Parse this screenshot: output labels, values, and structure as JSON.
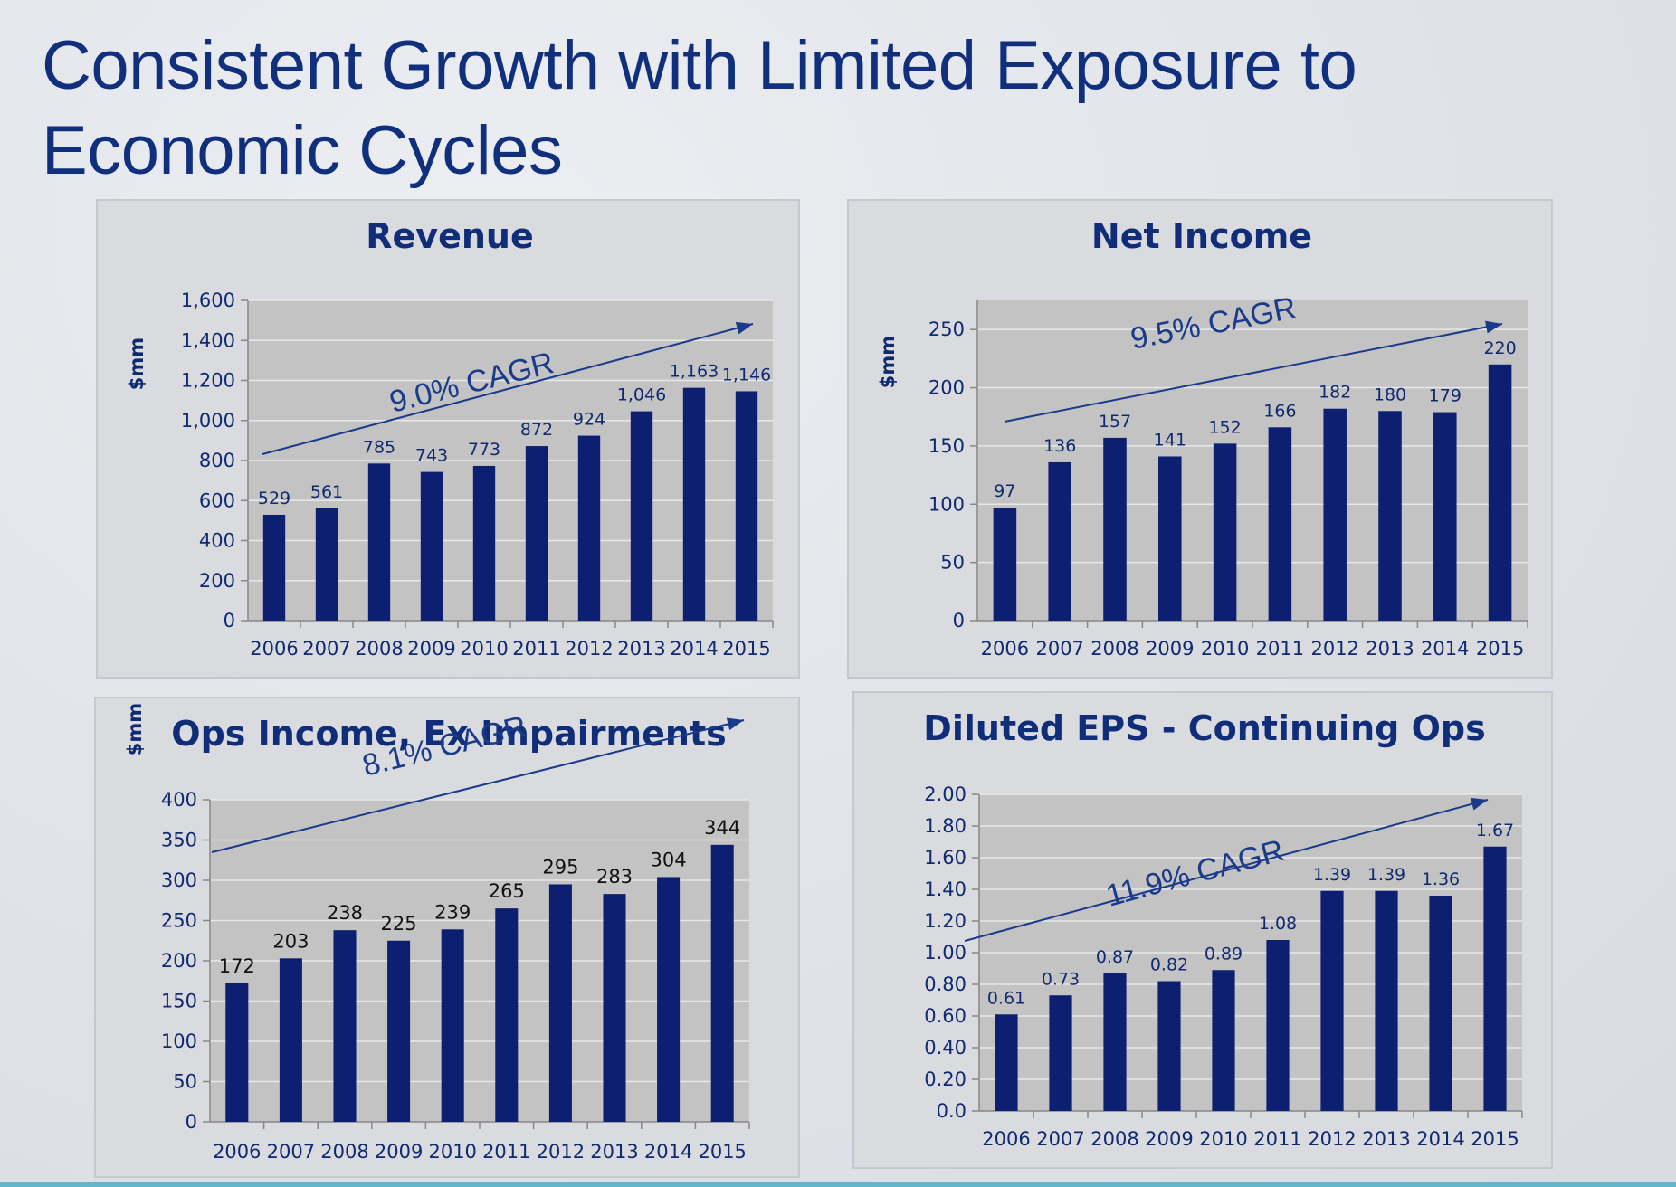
{
  "title": "Consistent Growth with Limited Exposure to Economic Cycles",
  "colors": {
    "bar": "#0d1f70",
    "plot_bg": "#c3c3c3",
    "title": "#10307e",
    "arrow": "#1a3a8c"
  },
  "charts": [
    {
      "id": "revenue",
      "title": "Revenue",
      "ylabel": "$mm",
      "cagr": "9.0% CAGR",
      "y_ticks": [
        "0",
        "200",
        "400",
        "600",
        "800",
        "1,000",
        "1,200",
        "1,400",
        "1,600"
      ],
      "data_labels": [
        "529",
        "561",
        "785",
        "743",
        "773",
        "872",
        "924",
        "1,046",
        "1,163",
        "1,146"
      ],
      "x_ticks": [
        "2006",
        "2007",
        "2008",
        "2009",
        "2010",
        "2011",
        "2012",
        "2013",
        "2014",
        "2015"
      ]
    },
    {
      "id": "net-income",
      "title": "Net Income",
      "ylabel": "$mm",
      "cagr": "9.5% CAGR",
      "y_ticks": [
        "0",
        "50",
        "100",
        "150",
        "200",
        "250"
      ],
      "data_labels": [
        "97",
        "136",
        "157",
        "141",
        "152",
        "166",
        "182",
        "180",
        "179",
        "220"
      ],
      "x_ticks": [
        "2006",
        "2007",
        "2008",
        "2009",
        "2010",
        "2011",
        "2012",
        "2013",
        "2014",
        "2015"
      ]
    },
    {
      "id": "ops-income",
      "title": "Ops Income, Ex Impairments",
      "ylabel": "$mm",
      "cagr": "8.1% CAGR",
      "y_ticks": [
        "0",
        "50",
        "100",
        "150",
        "200",
        "250",
        "300",
        "350",
        "400"
      ],
      "data_labels": [
        "172",
        "203",
        "238",
        "225",
        "239",
        "265",
        "295",
        "283",
        "304",
        "344"
      ],
      "x_ticks": [
        "2006",
        "2007",
        "2008",
        "2009",
        "2010",
        "2011",
        "2012",
        "2013",
        "2014",
        "2015"
      ]
    },
    {
      "id": "diluted-eps",
      "title": "Diluted EPS - Continuing Ops",
      "ylabel": "",
      "cagr": "11.9% CAGR",
      "y_ticks": [
        "0.0",
        "0.20",
        "0.40",
        "0.60",
        "0.80",
        "1.00",
        "1.20",
        "1.40",
        "1.60",
        "1.80",
        "2.00"
      ],
      "data_labels": [
        "0.61",
        "0.73",
        "0.87",
        "0.82",
        "0.89",
        "1.08",
        "1.39",
        "1.39",
        "1.36",
        "1.67"
      ],
      "x_ticks": [
        "2006",
        "2007",
        "2008",
        "2009",
        "2010",
        "2011",
        "2012",
        "2013",
        "2014",
        "2015"
      ]
    }
  ],
  "chart_data": [
    {
      "type": "bar",
      "title": "Revenue",
      "ylabel": "$mm",
      "categories": [
        "2006",
        "2007",
        "2008",
        "2009",
        "2010",
        "2011",
        "2012",
        "2013",
        "2014",
        "2015"
      ],
      "values": [
        529,
        561,
        785,
        743,
        773,
        872,
        924,
        1046,
        1163,
        1146
      ],
      "ylim": [
        0,
        1600
      ],
      "annotation": "9.0% CAGR",
      "grid": true
    },
    {
      "type": "bar",
      "title": "Net Income",
      "ylabel": "$mm",
      "categories": [
        "2006",
        "2007",
        "2008",
        "2009",
        "2010",
        "2011",
        "2012",
        "2013",
        "2014",
        "2015"
      ],
      "values": [
        97,
        136,
        157,
        141,
        152,
        166,
        182,
        180,
        179,
        220
      ],
      "ylim": [
        0,
        275
      ],
      "annotation": "9.5% CAGR",
      "grid": true
    },
    {
      "type": "bar",
      "title": "Ops Income, Ex Impairments",
      "ylabel": "$mm",
      "categories": [
        "2006",
        "2007",
        "2008",
        "2009",
        "2010",
        "2011",
        "2012",
        "2013",
        "2014",
        "2015"
      ],
      "values": [
        172,
        203,
        238,
        225,
        239,
        265,
        295,
        283,
        304,
        344
      ],
      "ylim": [
        0,
        400
      ],
      "annotation": "8.1% CAGR",
      "grid": true
    },
    {
      "type": "bar",
      "title": "Diluted EPS - Continuing Ops",
      "categories": [
        "2006",
        "2007",
        "2008",
        "2009",
        "2010",
        "2011",
        "2012",
        "2013",
        "2014",
        "2015"
      ],
      "values": [
        0.61,
        0.73,
        0.87,
        0.82,
        0.89,
        1.08,
        1.39,
        1.39,
        1.36,
        1.67
      ],
      "ylim": [
        0,
        2.0
      ],
      "annotation": "11.9% CAGR",
      "grid": true
    }
  ]
}
